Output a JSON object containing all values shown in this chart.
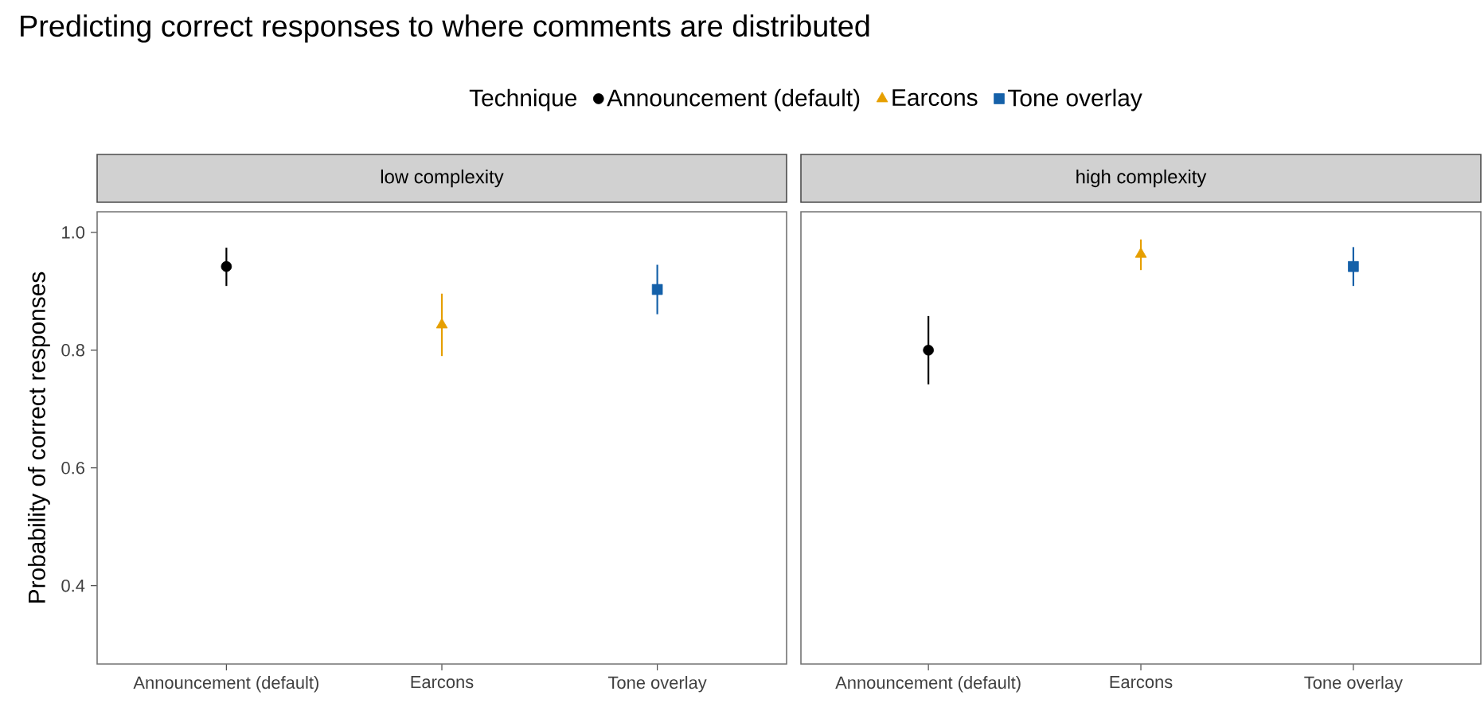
{
  "chart_data": [
    {
      "type": "scatter",
      "title": "Predicting correct responses to where comments are distributed",
      "subtitle": "low complexity",
      "ylabel": "Probability of correct responses",
      "legend_title": "Technique",
      "legend": "top",
      "categories": [
        "Announcement (default)",
        "Earcons",
        "Tone overlay"
      ],
      "ylim": [
        0.267,
        1.035
      ],
      "yticks": [
        0.4,
        0.6,
        0.8,
        {
          "value": 1.0,
          "label": "1.0"
        }
      ],
      "grid": false,
      "series": [
        {
          "name": "Announcement (default)",
          "color": "#000000",
          "marker": "circle",
          "values": [
            0.942,
            null,
            null
          ],
          "errors": [
            [
              0.909,
              0.974
            ],
            null,
            null
          ]
        },
        {
          "name": "Earcons",
          "color": "#E69F00",
          "marker": "triangle",
          "values": [
            null,
            0.843,
            null
          ],
          "errors": [
            null,
            [
              0.79,
              0.896
            ],
            null
          ]
        },
        {
          "name": "Tone overlay",
          "color": "#1561A9",
          "marker": "square",
          "values": [
            null,
            null,
            0.903
          ],
          "errors": [
            null,
            null,
            [
              0.861,
              0.945
            ]
          ]
        }
      ]
    },
    {
      "type": "scatter",
      "subtitle": "high complexity",
      "tick_labels": "x",
      "categories": [
        "Announcement (default)",
        "Earcons",
        "Tone overlay"
      ],
      "ylim": [
        0.267,
        1.035
      ],
      "yticks": [
        0.4,
        0.6,
        0.8,
        1.0
      ],
      "grid": false,
      "series": [
        {
          "color": "#000000",
          "marker": "circle",
          "values": [
            0.8,
            null,
            null
          ],
          "errors": [
            [
              0.742,
              0.858
            ],
            null,
            null
          ]
        },
        {
          "color": "#E69F00",
          "marker": "triangle",
          "values": [
            null,
            0.963,
            null
          ],
          "errors": [
            null,
            [
              0.936,
              0.988
            ],
            null
          ]
        },
        {
          "color": "#1561A9",
          "marker": "square",
          "values": [
            null,
            null,
            0.942
          ],
          "errors": [
            null,
            null,
            [
              0.909,
              0.975
            ]
          ]
        }
      ]
    }
  ]
}
